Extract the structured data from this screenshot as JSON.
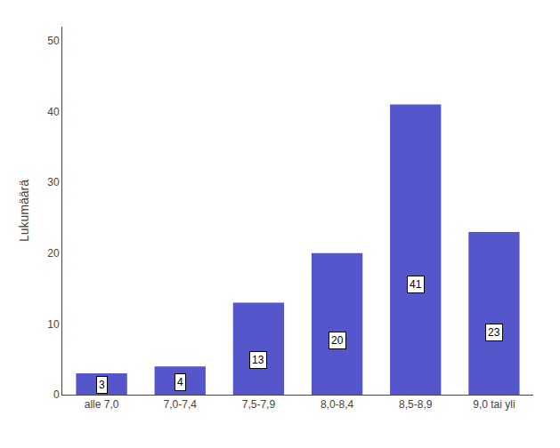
{
  "chart_data": {
    "type": "bar",
    "categories": [
      "alle 7,0",
      "7,0-7,4",
      "7,5-7,9",
      "8,0-8,4",
      "8,5-8,9",
      "9,0 tai yli"
    ],
    "values": [
      3,
      4,
      13,
      20,
      41,
      23
    ],
    "color": "#5555CC",
    "ylabel": "Lukumäärä",
    "ylim": [
      0,
      52
    ],
    "yticks": [
      0,
      10,
      20,
      30,
      40,
      50
    ],
    "grid": false,
    "data_labels": true
  }
}
